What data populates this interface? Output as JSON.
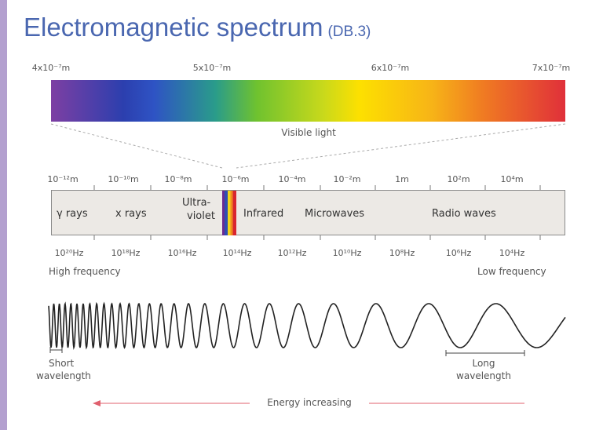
{
  "title": {
    "main": "Electromagnetic spectrum",
    "ref": "(DB.3)"
  },
  "visible_wavelengths": [
    "4x10⁻⁷m",
    "5x10⁻⁷m",
    "6x10⁻⁷m",
    "7x10⁻⁷m"
  ],
  "visible_light_label": "Visible light",
  "wavelength_ticks": [
    "10⁻¹²m",
    "10⁻¹⁰m",
    "10⁻⁸m",
    "10⁻⁶m",
    "10⁻⁴m",
    "10⁻²m",
    "1m",
    "10²m",
    "10⁴m"
  ],
  "regions": {
    "gamma": "γ rays",
    "xray": "x rays",
    "uv_line1": "Ultra-",
    "uv_line2": "violet",
    "infrared": "Infrared",
    "microwaves": "Microwaves",
    "radio": "Radio waves"
  },
  "frequency_ticks": [
    "10²⁰Hz",
    "10¹⁸Hz",
    "10¹⁶Hz",
    "10¹⁴Hz",
    "10¹²Hz",
    "10¹⁰Hz",
    "10⁸Hz",
    "10⁶Hz",
    "10⁴Hz"
  ],
  "high_frequency_label": "High frequency",
  "low_frequency_label": "Low frequency",
  "short_wavelength": {
    "line1": "Short",
    "line2": "wavelength"
  },
  "long_wavelength": {
    "line1": "Long",
    "line2": "wavelength"
  },
  "energy_label": "Energy increasing",
  "colors": {
    "title": "#4a67b0",
    "arrow": "#e0606e",
    "left_bar": "#b3a0cf"
  }
}
